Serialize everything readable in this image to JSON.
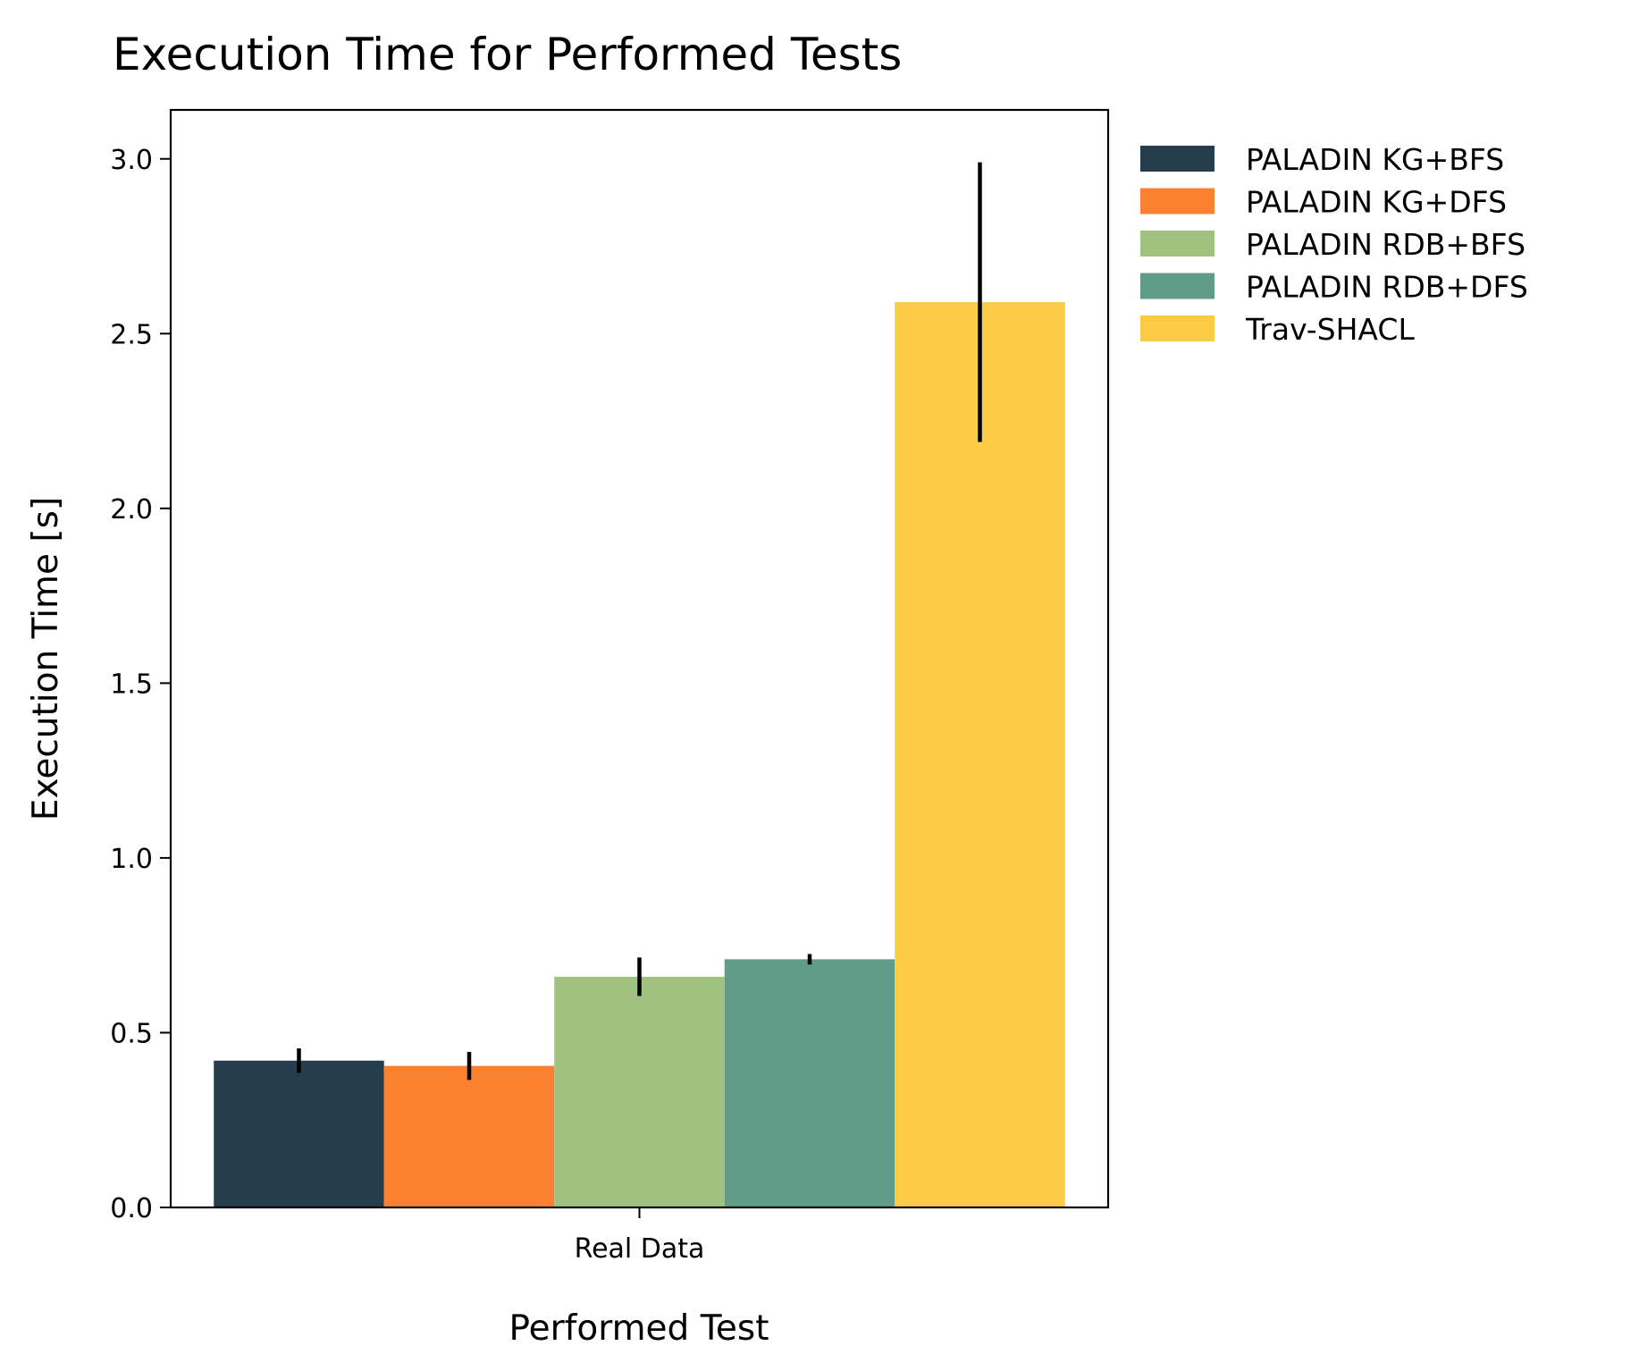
{
  "chart_data": {
    "type": "bar",
    "title": "Execution Time for Performed Tests",
    "xlabel": "Performed Test",
    "ylabel": "Execution Time [s]",
    "categories": [
      "Real Data"
    ],
    "ylim": [
      0,
      3.14
    ],
    "yticks": [
      0.0,
      0.5,
      1.0,
      1.5,
      2.0,
      2.5,
      3.0
    ],
    "ytick_labels": [
      "0.0",
      "0.5",
      "1.0",
      "1.5",
      "2.0",
      "2.5",
      "3.0"
    ],
    "grid": false,
    "legend_position": "outside-top-right",
    "series": [
      {
        "name": "PALADIN KG+BFS",
        "color": "#253d4c",
        "values": [
          0.42
        ],
        "error": [
          0.035
        ]
      },
      {
        "name": "PALADIN KG+DFS",
        "color": "#fd8130",
        "values": [
          0.405
        ],
        "error": [
          0.04
        ]
      },
      {
        "name": "PALADIN RDB+BFS",
        "color": "#a1c180",
        "values": [
          0.66
        ],
        "error": [
          0.055
        ]
      },
      {
        "name": "PALADIN RDB+DFS",
        "color": "#619c88",
        "values": [
          0.71
        ],
        "error": [
          0.015
        ]
      },
      {
        "name": "Trav-SHACL",
        "color": "#fccb47",
        "values": [
          2.59
        ],
        "error": [
          0.4
        ]
      }
    ]
  }
}
